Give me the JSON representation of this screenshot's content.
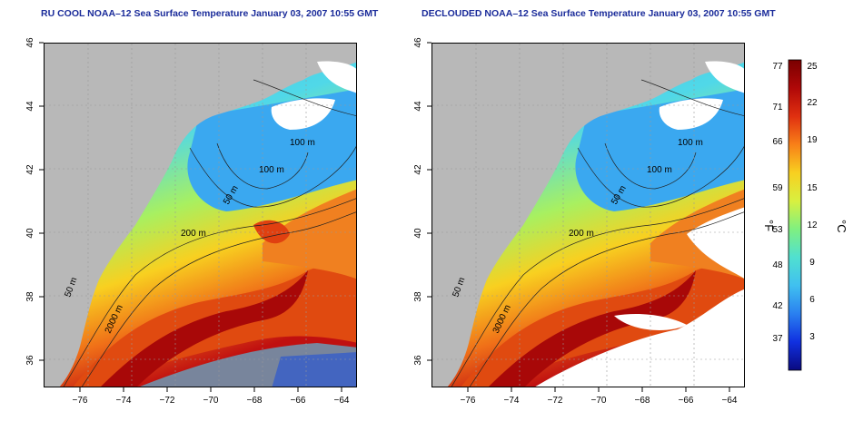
{
  "left_panel": {
    "title": "RU COOL NOAA–12 Sea Surface Temperature January 03, 2007 10:55 GMT"
  },
  "right_panel": {
    "title": "DECLOUDED NOAA–12 Sea Surface Temperature January 03, 2007 10:55 GMT"
  },
  "axes": {
    "lon_ticks": [
      "−76",
      "−74",
      "−72",
      "−70",
      "−68",
      "−66",
      "−64"
    ],
    "lat_ticks": [
      "46",
      "44",
      "42",
      "40",
      "38",
      "36"
    ]
  },
  "contours": {
    "labels": [
      "100 m",
      "100 m",
      "50 m",
      "200 m",
      "50 m",
      "2000 m"
    ],
    "right_labels": [
      "100 m",
      "100 m",
      "50 m",
      "200 m",
      "50 m",
      "3000 m"
    ]
  },
  "colorbar": {
    "fahrenheit_ticks": [
      "77",
      "71",
      "66",
      "59",
      "53",
      "48",
      "42",
      "37"
    ],
    "celsius_ticks": [
      "25",
      "22",
      "19",
      "15",
      "12",
      "9",
      "6",
      "3"
    ],
    "fahrenheit_unit": "°F",
    "celsius_unit": "°C",
    "colors": [
      "#0a0a80",
      "#1030e0",
      "#2a80f0",
      "#40c0f0",
      "#50e0d0",
      "#80f080",
      "#d8f040",
      "#f8d020",
      "#f88018",
      "#e03010",
      "#b00808",
      "#7a0000"
    ]
  },
  "colors": {
    "land": "#b8b8b8",
    "cloud": "#ffffff",
    "title": "#1a2b9a"
  }
}
